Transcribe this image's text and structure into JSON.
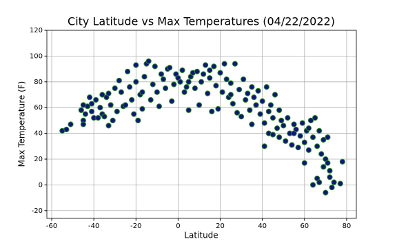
{
  "chart_data": {
    "type": "scatter",
    "title": "City Latitude vs Max Temperatures (04/22/2022)",
    "x_label": "Latitude",
    "y_label": "Max Temperature (F)",
    "marker_color": "#14147a",
    "edge_color": "#1e8c1e",
    "grid": true,
    "xlim": [
      -62.3,
      84.6
    ],
    "ylim": [
      -26,
      120
    ],
    "xticks": [
      -60,
      -40,
      -20,
      0,
      20,
      40,
      60,
      80
    ],
    "yticks": [
      -20,
      0,
      20,
      40,
      60,
      80,
      100,
      120
    ],
    "x": [
      -55,
      -53,
      -51,
      -46,
      -45,
      -45,
      -45,
      -44,
      -43,
      -42,
      -41,
      -41,
      -40,
      -39,
      -37,
      -36,
      -36,
      -35,
      -34,
      -33,
      -33,
      -32,
      -31,
      -30,
      -29,
      -28,
      -27,
      -26,
      -25,
      -24,
      -23,
      -22,
      -21,
      -20,
      -20,
      -19,
      -18,
      -17,
      -16,
      -15,
      -14,
      -13,
      -12,
      -11,
      -10,
      -9,
      -8,
      -7,
      -6,
      -5,
      -4,
      -3,
      -2,
      -1,
      0,
      1,
      2,
      3,
      4,
      5,
      6,
      7,
      8,
      9,
      10,
      11,
      12,
      13,
      14,
      15,
      16,
      17,
      18,
      19,
      20,
      21,
      22,
      23,
      24,
      25,
      26,
      27,
      28,
      29,
      30,
      31,
      32,
      33,
      34,
      35,
      35,
      36,
      37,
      38,
      39,
      40,
      41,
      41,
      42,
      43,
      43,
      44,
      45,
      46,
      47,
      48,
      48,
      49,
      50,
      51,
      52,
      53,
      54,
      55,
      56,
      57,
      58,
      59,
      60,
      60,
      61,
      62,
      63,
      64,
      64,
      65,
      66,
      66,
      67,
      67,
      68,
      69,
      69,
      70,
      70,
      71,
      71,
      72,
      72,
      73,
      74,
      77,
      78,
      -38,
      -17,
      5,
      15,
      25,
      45,
      55,
      62
    ],
    "values": [
      42,
      43,
      47,
      58,
      62,
      50,
      47,
      55,
      61,
      68,
      57,
      63,
      52,
      66,
      60,
      70,
      55,
      53,
      68,
      71,
      46,
      62,
      50,
      75,
      57,
      81,
      72,
      61,
      62,
      88,
      76,
      66,
      55,
      93,
      80,
      50,
      70,
      59,
      84,
      94,
      96,
      66,
      78,
      92,
      72,
      61,
      86,
      82,
      75,
      90,
      91,
      65,
      78,
      86,
      83,
      80,
      89,
      72,
      76,
      58,
      84,
      87,
      75,
      88,
      62,
      80,
      86,
      93,
      71,
      89,
      57,
      92,
      77,
      59,
      87,
      72,
      94,
      82,
      68,
      79,
      63,
      94,
      56,
      74,
      53,
      82,
      66,
      71,
      58,
      76,
      47,
      68,
      62,
      73,
      55,
      65,
      30,
      48,
      76,
      40,
      57,
      62,
      52,
      70,
      44,
      58,
      37,
      50,
      46,
      34,
      52,
      40,
      31,
      47,
      43,
      29,
      38,
      48,
      17,
      33,
      42,
      27,
      50,
      37,
      0,
      52,
      30,
      5,
      2,
      42,
      24,
      35,
      14,
      20,
      -6,
      37,
      17,
      11,
      6,
      -2,
      2,
      1,
      18,
      52,
      72,
      80,
      83,
      70,
      39,
      40,
      44
    ]
  }
}
